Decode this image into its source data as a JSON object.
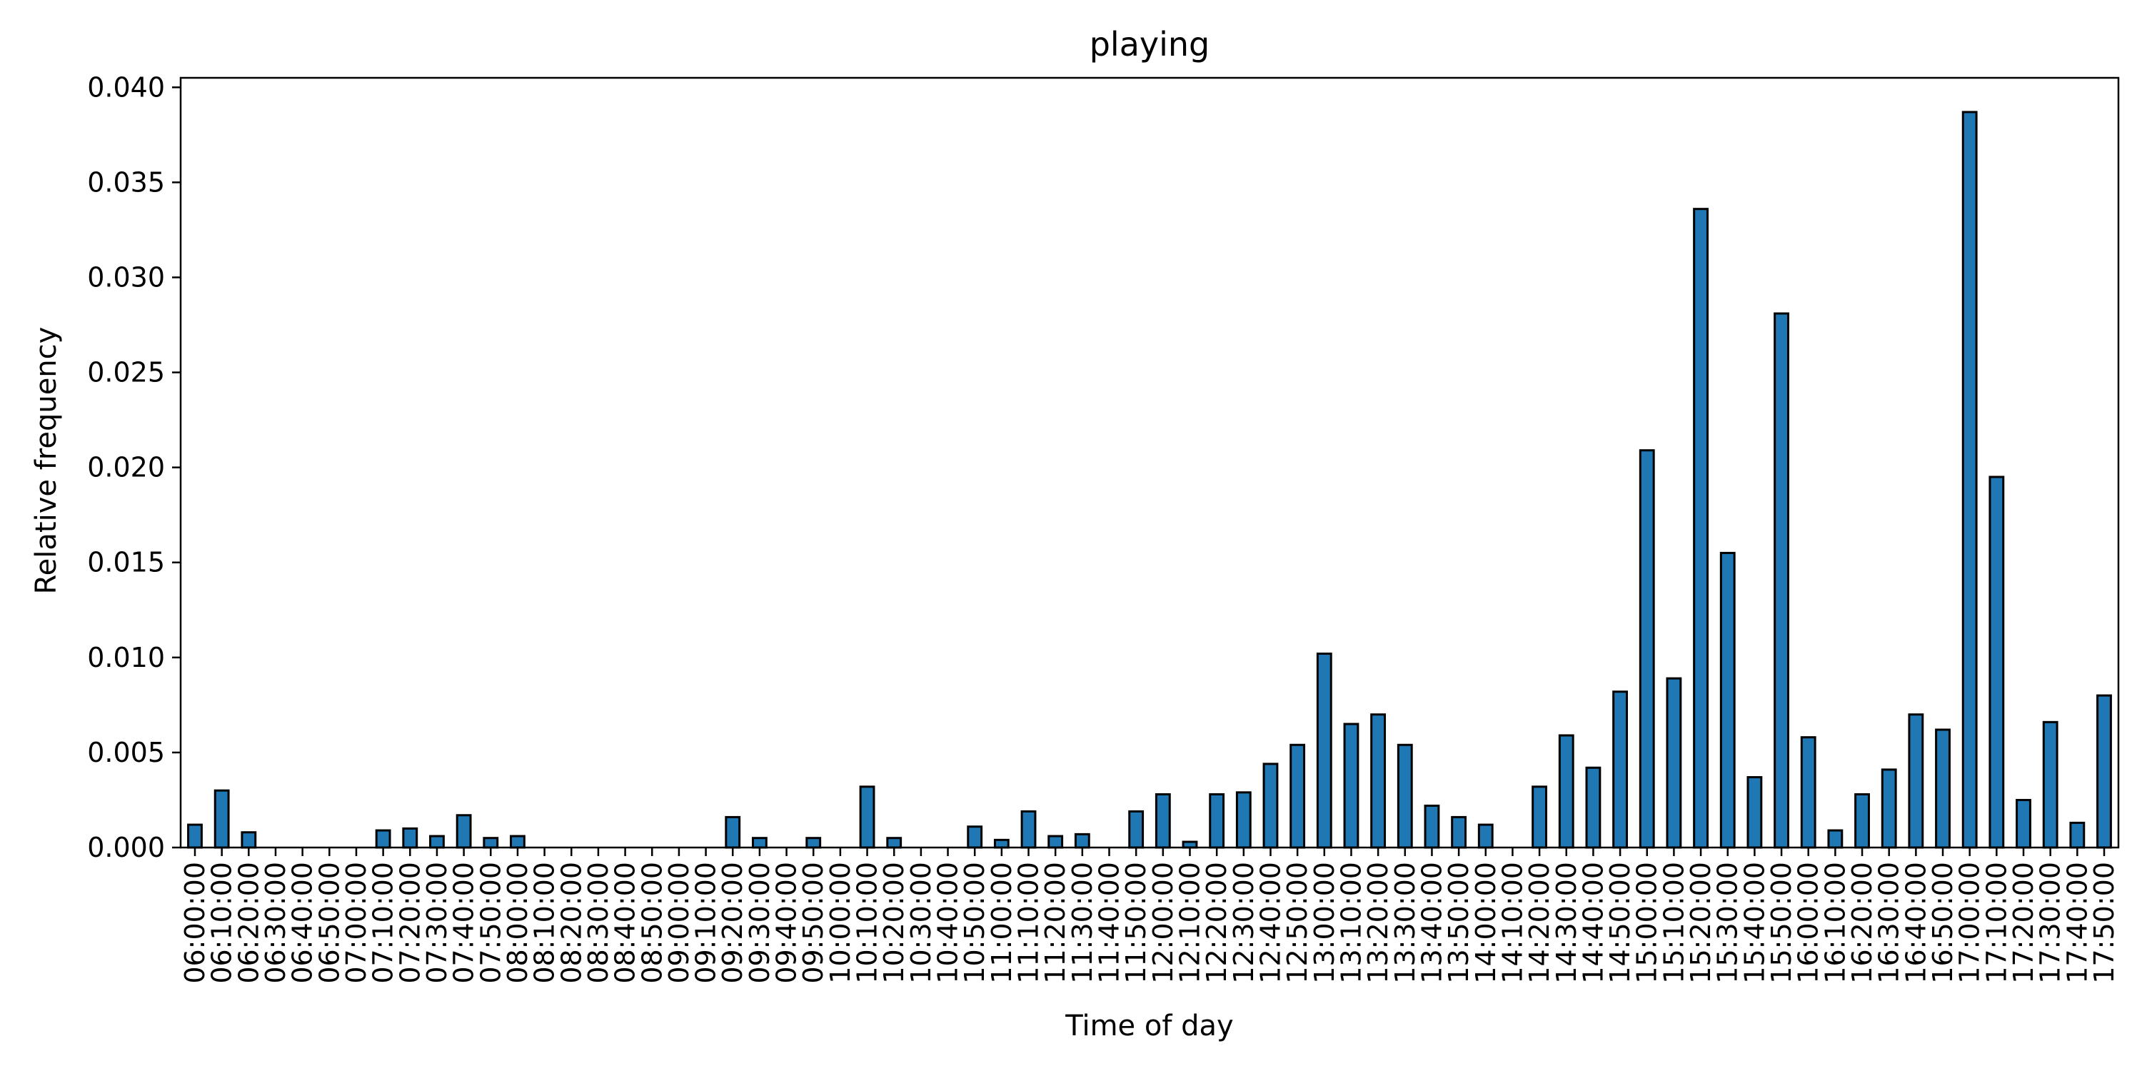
{
  "chart_data": {
    "type": "bar",
    "title": "playing",
    "xlabel": "Time of day",
    "ylabel": "Relative frequency",
    "ylim": [
      0,
      0.0405
    ],
    "yticks": [
      "0.000",
      "0.005",
      "0.010",
      "0.015",
      "0.020",
      "0.025",
      "0.030",
      "0.035",
      "0.040"
    ],
    "ytick_values": [
      0,
      0.005,
      0.01,
      0.015,
      0.02,
      0.025,
      0.03,
      0.035,
      0.04
    ],
    "grid": false,
    "legend": "none",
    "bar_color": "#1f77b4",
    "edge_color": "#000000",
    "categories": [
      "06:00:00",
      "06:10:00",
      "06:20:00",
      "06:30:00",
      "06:40:00",
      "06:50:00",
      "07:00:00",
      "07:10:00",
      "07:20:00",
      "07:30:00",
      "07:40:00",
      "07:50:00",
      "08:00:00",
      "08:10:00",
      "08:20:00",
      "08:30:00",
      "08:40:00",
      "08:50:00",
      "09:00:00",
      "09:10:00",
      "09:20:00",
      "09:30:00",
      "09:40:00",
      "09:50:00",
      "10:00:00",
      "10:10:00",
      "10:20:00",
      "10:30:00",
      "10:40:00",
      "10:50:00",
      "11:00:00",
      "11:10:00",
      "11:20:00",
      "11:30:00",
      "11:40:00",
      "11:50:00",
      "12:00:00",
      "12:10:00",
      "12:20:00",
      "12:30:00",
      "12:40:00",
      "12:50:00",
      "13:00:00",
      "13:10:00",
      "13:20:00",
      "13:30:00",
      "13:40:00",
      "13:50:00",
      "14:00:00",
      "14:10:00",
      "14:20:00",
      "14:30:00",
      "14:40:00",
      "14:50:00",
      "15:00:00",
      "15:10:00",
      "15:20:00",
      "15:30:00",
      "15:40:00",
      "15:50:00",
      "16:00:00",
      "16:10:00",
      "16:20:00",
      "16:30:00",
      "16:40:00",
      "16:50:00",
      "17:00:00",
      "17:10:00",
      "17:20:00",
      "17:30:00",
      "17:40:00",
      "17:50:00"
    ],
    "values": [
      0.0012,
      0.003,
      0.0008,
      0,
      0,
      0,
      0,
      0.0009,
      0.001,
      0.0006,
      0.0017,
      0.0005,
      0.0006,
      0,
      0,
      0,
      0,
      0,
      0,
      0,
      0.0016,
      0.0005,
      0,
      0.0005,
      0,
      0.0032,
      0.0005,
      0,
      0,
      0.0011,
      0.0004,
      0.0019,
      0.0006,
      0.0007,
      0,
      0.0019,
      0.0028,
      0.0003,
      0.0028,
      0.0029,
      0.0044,
      0.0054,
      0.0102,
      0.0065,
      0.007,
      0.0054,
      0.0022,
      0.0016,
      0.0012,
      0,
      0.0032,
      0.0059,
      0.0042,
      0.0082,
      0.0209,
      0.0089,
      0.0336,
      0.0155,
      0.0037,
      0.0281,
      0.0058,
      0.0009,
      0.0028,
      0.0041,
      0.007,
      0.0062,
      0.0387,
      0.0195,
      0.0025,
      0.0066,
      0.0013,
      0.008
    ]
  }
}
